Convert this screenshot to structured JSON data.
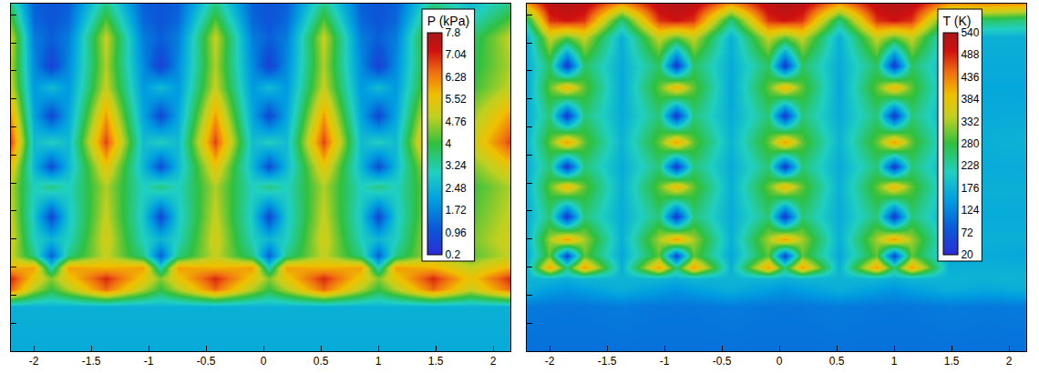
{
  "chart_data": [
    {
      "type": "heatmap",
      "colorbar_title": "P (kPa)",
      "zlim": [
        0.2,
        7.8
      ],
      "zticks": [
        0.2,
        0.96,
        1.72,
        2.48,
        3.24,
        4,
        4.76,
        5.52,
        6.28,
        7.04,
        7.8
      ],
      "x": [
        -2.2,
        -2.0,
        -1.85,
        -1.7,
        -1.375,
        -1.05,
        -0.9,
        -0.75,
        -0.425,
        -0.1,
        0.05,
        0.2,
        0.525,
        0.85,
        1.0,
        1.15,
        1.475,
        1.8,
        2.15
      ],
      "y": [
        0,
        0.4,
        0.55,
        0.65,
        0.75,
        0.85,
        1.0,
        1.2,
        1.47,
        1.65,
        1.87,
        2.1,
        2.35,
        2.55,
        2.8,
        2.95,
        3.1
      ],
      "z": [
        [
          2.3,
          2.3,
          2.3,
          2.3,
          2.3,
          2.3,
          2.3,
          2.3,
          2.3,
          2.3,
          2.3,
          2.3,
          2.3,
          2.3,
          2.3,
          2.3,
          2.3,
          2.3,
          2.3
        ],
        [
          2.4,
          2.4,
          2.4,
          2.4,
          2.4,
          2.4,
          2.4,
          2.4,
          2.4,
          2.4,
          2.4,
          2.4,
          2.4,
          2.4,
          2.4,
          2.4,
          2.4,
          2.4,
          2.4
        ],
        [
          6.5,
          4.8,
          4.0,
          4.8,
          6.5,
          4.8,
          4.0,
          4.8,
          6.5,
          4.8,
          4.0,
          4.8,
          6.5,
          4.8,
          4.0,
          4.8,
          6.5,
          5.0,
          6.5
        ],
        [
          7.0,
          5.5,
          4.5,
          5.5,
          7.0,
          5.5,
          4.5,
          5.5,
          7.0,
          5.5,
          4.5,
          5.5,
          7.0,
          5.5,
          4.5,
          5.5,
          7.0,
          5.5,
          7.0
        ],
        [
          5.8,
          6.0,
          3.0,
          6.0,
          5.8,
          6.0,
          3.0,
          6.0,
          5.8,
          6.0,
          3.0,
          6.0,
          5.8,
          6.0,
          3.0,
          6.0,
          5.8,
          5.0,
          5.8
        ],
        [
          5.0,
          3.5,
          1.2,
          3.5,
          5.0,
          3.5,
          1.2,
          3.5,
          5.0,
          3.5,
          1.2,
          3.5,
          5.0,
          3.5,
          1.2,
          3.5,
          5.0,
          4.2,
          5.0
        ],
        [
          5.2,
          3.0,
          2.5,
          3.0,
          5.2,
          3.0,
          2.5,
          3.0,
          5.2,
          3.0,
          2.5,
          3.0,
          5.2,
          3.0,
          2.5,
          3.0,
          5.2,
          4.4,
          5.2
        ],
        [
          5.0,
          2.8,
          0.8,
          2.8,
          5.0,
          2.8,
          0.8,
          2.8,
          5.0,
          2.8,
          0.8,
          2.8,
          5.0,
          2.8,
          0.8,
          2.8,
          5.0,
          4.2,
          5.0
        ],
        [
          4.8,
          3.0,
          3.5,
          3.0,
          4.8,
          3.0,
          3.5,
          3.0,
          4.8,
          3.0,
          3.5,
          3.0,
          4.8,
          3.0,
          3.5,
          3.0,
          4.8,
          4.0,
          4.8
        ],
        [
          5.5,
          2.5,
          0.9,
          2.5,
          5.5,
          2.5,
          0.9,
          2.5,
          5.5,
          2.5,
          0.9,
          2.5,
          5.5,
          2.5,
          0.9,
          2.5,
          5.5,
          4.4,
          5.5
        ],
        [
          6.8,
          2.6,
          3.0,
          2.6,
          6.8,
          2.6,
          3.0,
          2.6,
          6.8,
          2.6,
          3.0,
          2.6,
          6.8,
          2.6,
          3.0,
          2.6,
          6.8,
          5.0,
          6.8
        ],
        [
          6.0,
          2.2,
          0.8,
          2.2,
          6.0,
          2.2,
          0.8,
          2.2,
          6.0,
          2.2,
          0.8,
          2.2,
          6.0,
          2.2,
          0.8,
          2.2,
          6.0,
          4.6,
          6.0
        ],
        [
          5.0,
          2.0,
          2.6,
          2.0,
          5.0,
          2.0,
          2.6,
          2.0,
          5.0,
          2.0,
          2.6,
          2.0,
          5.0,
          2.0,
          2.6,
          2.0,
          5.0,
          4.0,
          5.0
        ],
        [
          4.8,
          1.8,
          0.6,
          1.8,
          4.8,
          1.8,
          0.6,
          1.8,
          4.8,
          1.8,
          0.6,
          1.8,
          4.8,
          1.8,
          0.6,
          1.8,
          4.8,
          3.8,
          4.8
        ],
        [
          5.0,
          1.6,
          1.2,
          1.6,
          5.0,
          1.6,
          1.2,
          1.6,
          5.0,
          1.6,
          1.2,
          1.6,
          5.0,
          1.6,
          1.2,
          1.6,
          5.0,
          3.6,
          5.0
        ],
        [
          4.2,
          1.3,
          1.0,
          1.3,
          4.2,
          1.3,
          1.0,
          1.3,
          4.2,
          1.3,
          1.0,
          1.3,
          4.2,
          1.3,
          1.0,
          1.3,
          4.2,
          3.0,
          4.2
        ],
        [
          3.5,
          1.2,
          1.0,
          1.2,
          3.5,
          1.2,
          1.0,
          1.2,
          3.5,
          1.2,
          1.0,
          1.2,
          3.5,
          1.2,
          1.0,
          1.2,
          3.5,
          2.6,
          3.5
        ]
      ],
      "xlim": [
        -2.2,
        2.15
      ],
      "xticks": [
        -2,
        -1.5,
        -1,
        -0.5,
        0,
        0.5,
        1,
        1.5,
        2
      ],
      "ylim": [
        0,
        3.1
      ],
      "yticks": [
        0.25,
        0.5,
        0.75,
        1,
        1.25,
        1.5,
        1.75,
        2,
        2.25,
        2.5,
        2.75,
        3
      ],
      "tick_labels": "x"
    },
    {
      "type": "heatmap",
      "colorbar_title": "T (K)",
      "zlim": [
        20,
        540
      ],
      "zticks": [
        20,
        72,
        124,
        176,
        228,
        280,
        332,
        384,
        436,
        488,
        540
      ],
      "x": [
        -2.2,
        -2.0,
        -1.85,
        -1.7,
        -1.375,
        -1.05,
        -0.9,
        -0.75,
        -0.425,
        -0.1,
        0.05,
        0.2,
        0.525,
        0.85,
        1.0,
        1.15,
        1.475,
        1.8,
        2.15
      ],
      "y": [
        0,
        0.4,
        0.55,
        0.65,
        0.75,
        0.85,
        1.0,
        1.2,
        1.47,
        1.65,
        1.87,
        2.1,
        2.35,
        2.55,
        2.8,
        2.95,
        3.1
      ],
      "z": [
        [
          105,
          105,
          105,
          105,
          105,
          105,
          105,
          105,
          105,
          105,
          105,
          105,
          105,
          105,
          105,
          105,
          105,
          105,
          105
        ],
        [
          115,
          110,
          110,
          110,
          115,
          110,
          110,
          110,
          115,
          110,
          110,
          110,
          115,
          110,
          110,
          110,
          115,
          112,
          115
        ],
        [
          170,
          150,
          140,
          150,
          170,
          150,
          140,
          150,
          170,
          150,
          140,
          150,
          170,
          150,
          140,
          150,
          170,
          160,
          170
        ],
        [
          175,
          180,
          170,
          180,
          175,
          180,
          170,
          180,
          175,
          180,
          170,
          180,
          175,
          180,
          170,
          180,
          175,
          175,
          175
        ],
        [
          170,
          420,
          250,
          420,
          170,
          420,
          250,
          420,
          170,
          420,
          250,
          420,
          170,
          420,
          250,
          420,
          170,
          170,
          170
        ],
        [
          160,
          300,
          60,
          300,
          160,
          300,
          60,
          300,
          160,
          300,
          60,
          300,
          160,
          300,
          60,
          300,
          160,
          165,
          160
        ],
        [
          170,
          330,
          420,
          330,
          170,
          330,
          420,
          330,
          170,
          330,
          420,
          330,
          170,
          330,
          420,
          330,
          170,
          170,
          170
        ],
        [
          165,
          250,
          40,
          250,
          165,
          250,
          40,
          250,
          165,
          250,
          40,
          250,
          165,
          250,
          40,
          250,
          165,
          165,
          165
        ],
        [
          170,
          300,
          400,
          300,
          170,
          300,
          400,
          300,
          170,
          300,
          400,
          300,
          170,
          300,
          400,
          300,
          170,
          170,
          170
        ],
        [
          165,
          250,
          40,
          250,
          165,
          250,
          40,
          250,
          165,
          250,
          40,
          250,
          165,
          250,
          40,
          250,
          165,
          165,
          165
        ],
        [
          175,
          300,
          420,
          300,
          175,
          300,
          420,
          300,
          175,
          300,
          420,
          300,
          175,
          300,
          420,
          300,
          175,
          170,
          175
        ],
        [
          165,
          250,
          40,
          250,
          165,
          250,
          40,
          250,
          165,
          250,
          40,
          250,
          165,
          250,
          40,
          250,
          165,
          165,
          165
        ],
        [
          160,
          300,
          400,
          300,
          160,
          300,
          400,
          300,
          160,
          300,
          400,
          300,
          160,
          300,
          400,
          300,
          160,
          160,
          160
        ],
        [
          165,
          260,
          40,
          260,
          165,
          260,
          40,
          260,
          165,
          260,
          40,
          260,
          165,
          260,
          40,
          260,
          165,
          165,
          165
        ],
        [
          170,
          350,
          300,
          350,
          170,
          350,
          300,
          350,
          170,
          350,
          300,
          350,
          170,
          350,
          300,
          350,
          170,
          170,
          170
        ],
        [
          250,
          480,
          500,
          480,
          250,
          480,
          500,
          480,
          250,
          480,
          500,
          480,
          250,
          480,
          500,
          480,
          250,
          260,
          250
        ],
        [
          420,
          520,
          530,
          520,
          420,
          520,
          530,
          520,
          420,
          520,
          530,
          520,
          420,
          520,
          530,
          520,
          420,
          430,
          420
        ]
      ],
      "xlim": [
        -2.2,
        2.15
      ],
      "xticks": [
        -2,
        -1.5,
        -1,
        -0.5,
        0,
        0.5,
        1,
        1.5,
        2
      ],
      "ylim": [
        0,
        3.1
      ],
      "yticks": [
        0.25,
        0.5,
        0.75,
        1,
        1.25,
        1.5,
        1.75,
        2,
        2.25,
        2.5,
        2.75,
        3
      ],
      "tick_labels": "x"
    }
  ]
}
